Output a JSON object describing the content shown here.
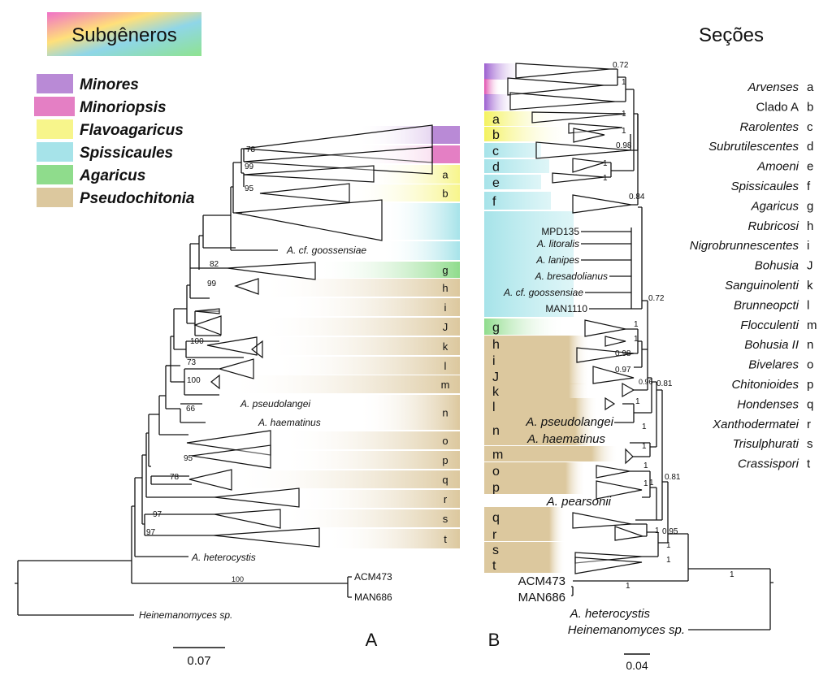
{
  "subgenera": {
    "title": "Subgêneros",
    "items": [
      {
        "label": "Minores",
        "color": "#b98ad6"
      },
      {
        "label": "Minoriopsis",
        "color": "#e47fc4"
      },
      {
        "label": "Flavoagaricus",
        "color": "#f7f58b"
      },
      {
        "label": "Spissicaules",
        "color": "#a6e3e9"
      },
      {
        "label": "Agaricus",
        "color": "#8fdc8c"
      },
      {
        "label": "Pseudochitonia",
        "color": "#dcc89e"
      }
    ]
  },
  "sections": {
    "title": "Seções",
    "items": [
      {
        "name": "Arvenses",
        "code": "a"
      },
      {
        "name": "Clado A",
        "code": "b"
      },
      {
        "name": "Rarolentes",
        "code": "c"
      },
      {
        "name": "Subrutilescentes",
        "code": "d"
      },
      {
        "name": "Amoeni",
        "code": "e"
      },
      {
        "name": "Spissicaules",
        "code": "f"
      },
      {
        "name": "Agaricus",
        "code": "g"
      },
      {
        "name": "Rubricosi",
        "code": "h"
      },
      {
        "name": "Nigrobrunnescentes",
        "code": "i"
      },
      {
        "name": "Bohusia",
        "code": "J"
      },
      {
        "name": "Sanguinolenti",
        "code": "k"
      },
      {
        "name": "Brunneopcti",
        "code": "l"
      },
      {
        "name": "Flocculenti",
        "code": "m"
      },
      {
        "name": "Bohusia II",
        "code": "n"
      },
      {
        "name": "Bivelares",
        "code": "o"
      },
      {
        "name": "Chitonioides",
        "code": "p"
      },
      {
        "name": "Hondenses",
        "code": "q"
      },
      {
        "name": "Xanthodermatei",
        "code": "r"
      },
      {
        "name": "Trisulphurati",
        "code": "s"
      },
      {
        "name": "Crassispori",
        "code": "t"
      }
    ]
  },
  "tree_a": {
    "panel_label": "A",
    "scale_label": "0.07",
    "band_letters": [
      "a",
      "b",
      "g",
      "h",
      "i",
      "J",
      "k",
      "l",
      "m",
      "n",
      "o",
      "p",
      "q",
      "r",
      "s",
      "t"
    ],
    "support": [
      "78",
      "99",
      "95",
      "82",
      "99",
      "100",
      "73",
      "100",
      "66",
      "95",
      "78",
      "97",
      "97",
      "100"
    ],
    "taxa": [
      "A. cf. goossensiae",
      "A. pseudolangei",
      "A. haematinus",
      "A. heterocystis",
      "ACM473",
      "MAN686",
      "Heinemanomyces sp."
    ]
  },
  "tree_b": {
    "panel_label": "B",
    "scale_label": "0.04",
    "band_letters": [
      "a",
      "b",
      "c",
      "d",
      "e",
      "f",
      "g",
      "h",
      "i",
      "J",
      "k",
      "l",
      "n",
      "m",
      "o",
      "p",
      "q",
      "r",
      "s",
      "t"
    ],
    "support": [
      "0.72",
      "1",
      "1",
      "1",
      "0.98",
      "1",
      "1",
      "0.84",
      "0.72",
      "1",
      "1",
      "0.98",
      "0.97",
      "0.96",
      "0.81",
      "1",
      "1",
      "1",
      "1",
      "1",
      "0.81",
      "1",
      "0.95",
      "1",
      "1",
      "1",
      "1"
    ],
    "taxa": [
      "MPD135",
      "A. litoralis",
      "A. lanipes",
      "A. bresadolianus",
      "A. cf. goossensiae",
      "MAN1110",
      "A. pseudolangei",
      "A. haematinus",
      "A. pearsonii",
      "ACM473",
      "MAN686",
      "A. heterocystis",
      "Heinemanomyces sp."
    ]
  }
}
